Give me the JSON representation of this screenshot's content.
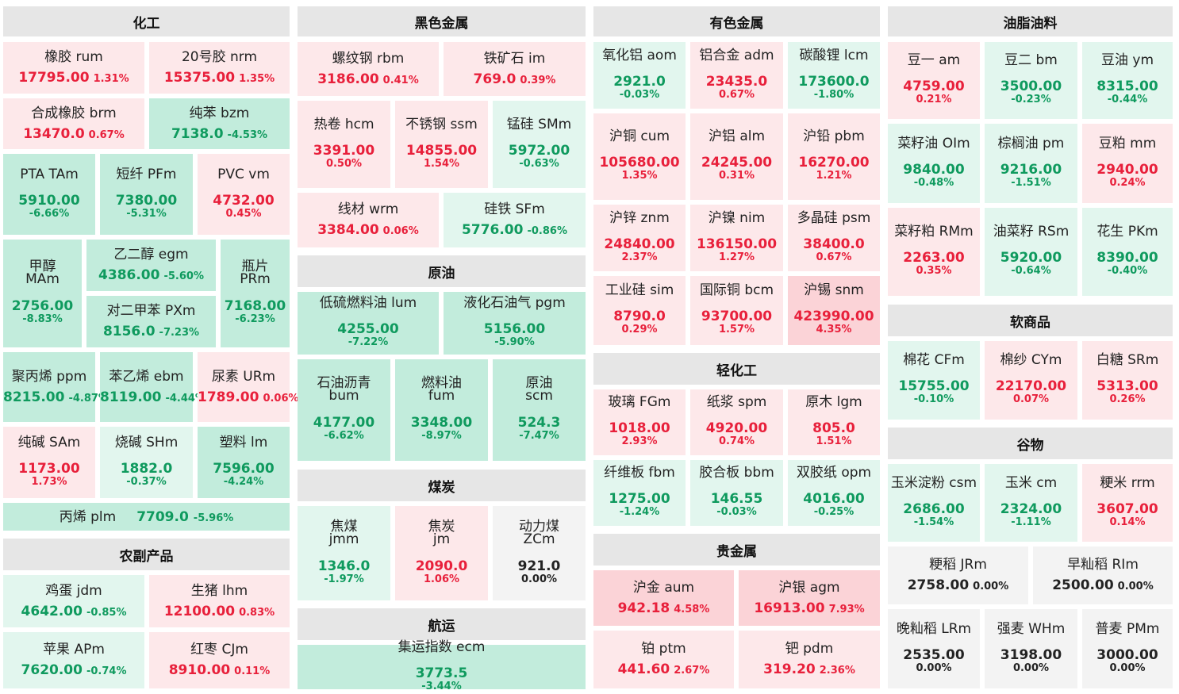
{
  "colors": {
    "up_text": "#e8203b",
    "down_text": "#0f9a5e",
    "flat_text": "#222222",
    "up_light_bg": "#fde8ea",
    "up_mid_bg": "#fbd3d7",
    "down_light_bg": "#e2f6ee",
    "down_mid_bg": "#c2ecdc",
    "flat_bg": "#f3f3f3",
    "header_bg": "#e6e6e6"
  },
  "sections": {
    "chemical": "化工",
    "ferrous": "黑色金属",
    "nonferrous": "有色金属",
    "oils": "油脂油料",
    "crude": "原油",
    "coal": "煤炭",
    "shipping": "航运",
    "light_industry": "轻化工",
    "precious": "贵金属",
    "softs": "软商品",
    "grains": "谷物",
    "agri": "农副产品"
  },
  "cells": {
    "rum": {
      "name": "橡胶  rum",
      "value": "17795.00",
      "pct": "1.31%",
      "dir": "up"
    },
    "nrm": {
      "name": "20号胶  nrm",
      "value": "15375.00",
      "pct": "1.35%",
      "dir": "up"
    },
    "brm": {
      "name": "合成橡胶  brm",
      "value": "13470.0",
      "pct": "0.67%",
      "dir": "up"
    },
    "bzm": {
      "name": "纯苯  bzm",
      "value": "7138.0",
      "pct": "-4.53%",
      "dir": "down"
    },
    "TAm": {
      "name": "PTA  TAm",
      "value": "5910.00",
      "pct": "-6.66%",
      "dir": "down"
    },
    "PFm": {
      "name": "短纤  PFm",
      "value": "7380.00",
      "pct": "-5.31%",
      "dir": "down"
    },
    "vm": {
      "name": "PVC  vm",
      "value": "4732.00",
      "pct": "0.45%",
      "dir": "up"
    },
    "MAm": {
      "name": "甲醇",
      "name2": "MAm",
      "value": "2756.00",
      "pct": "-8.83%",
      "dir": "down"
    },
    "egm": {
      "name": "乙二醇  egm",
      "value": "4386.00",
      "pct": "-5.60%",
      "dir": "down"
    },
    "PXm": {
      "name": "对二甲苯  PXm",
      "value": "8156.0",
      "pct": "-7.23%",
      "dir": "down"
    },
    "PRm": {
      "name": "瓶片",
      "name2": "PRm",
      "value": "7168.00",
      "pct": "-6.23%",
      "dir": "down"
    },
    "ppm": {
      "name": "聚丙烯  ppm",
      "value": "8215.00",
      "pct": "-4.87%",
      "dir": "down"
    },
    "ebm": {
      "name": "苯乙烯  ebm",
      "value": "8119.00",
      "pct": "-4.44%",
      "dir": "down"
    },
    "URm": {
      "name": "尿素  URm",
      "value": "1789.00",
      "pct": "0.06%",
      "dir": "up"
    },
    "SAm": {
      "name": "纯碱  SAm",
      "value": "1173.00",
      "pct": "1.73%",
      "dir": "up"
    },
    "SHm": {
      "name": "烧碱  SHm",
      "value": "1882.0",
      "pct": "-0.37%",
      "dir": "down"
    },
    "lm": {
      "name": "塑料  lm",
      "value": "7596.00",
      "pct": "-4.24%",
      "dir": "down"
    },
    "plm": {
      "name": "丙烯  plm",
      "value": "7709.0",
      "pct": "-5.96%",
      "dir": "down"
    },
    "jdm": {
      "name": "鸡蛋  jdm",
      "value": "4642.00",
      "pct": "-0.85%",
      "dir": "down"
    },
    "lhm": {
      "name": "生猪  lhm",
      "value": "12100.00",
      "pct": "0.83%",
      "dir": "up"
    },
    "APm": {
      "name": "苹果  APm",
      "value": "7620.00",
      "pct": "-0.74%",
      "dir": "down"
    },
    "CJm": {
      "name": "红枣  CJm",
      "value": "8910.00",
      "pct": "0.11%",
      "dir": "up"
    },
    "rbm": {
      "name": "螺纹钢  rbm",
      "value": "3186.00",
      "pct": "0.41%",
      "dir": "up"
    },
    "im": {
      "name": "铁矿石  im",
      "value": "769.0",
      "pct": "0.39%",
      "dir": "up"
    },
    "hcm": {
      "name": "热卷  hcm",
      "value": "3391.00",
      "pct": "0.50%",
      "dir": "up"
    },
    "ssm": {
      "name": "不锈钢  ssm",
      "value": "14855.00",
      "pct": "1.54%",
      "dir": "up"
    },
    "SMm": {
      "name": "锰硅  SMm",
      "value": "5972.00",
      "pct": "-0.63%",
      "dir": "down"
    },
    "wrm": {
      "name": "线材  wrm",
      "value": "3384.00",
      "pct": "0.06%",
      "dir": "up"
    },
    "SFm": {
      "name": "硅铁  SFm",
      "value": "5776.00",
      "pct": "-0.86%",
      "dir": "down"
    },
    "lum": {
      "name": "低硫燃料油  lum",
      "value": "4255.00",
      "pct": "-7.22%",
      "dir": "down"
    },
    "pgm": {
      "name": "液化石油气  pgm",
      "value": "5156.00",
      "pct": "-5.90%",
      "dir": "down"
    },
    "bum": {
      "name": "石油沥青",
      "name2": "bum",
      "value": "4177.00",
      "pct": "-6.62%",
      "dir": "down"
    },
    "fum": {
      "name": "燃料油",
      "name2": "fum",
      "value": "3348.00",
      "pct": "-8.97%",
      "dir": "down"
    },
    "scm": {
      "name": "原油",
      "name2": "scm",
      "value": "524.3",
      "pct": "-7.47%",
      "dir": "down"
    },
    "jmm": {
      "name": "焦煤",
      "name2": "jmm",
      "value": "1346.0",
      "pct": "-1.97%",
      "dir": "down"
    },
    "jm": {
      "name": "焦炭",
      "name2": "jm",
      "value": "2090.0",
      "pct": "1.06%",
      "dir": "up"
    },
    "ZCm": {
      "name": "动力煤",
      "name2": "ZCm",
      "value": "921.0",
      "pct": "0.00%",
      "dir": "flat"
    },
    "ecm": {
      "name": "集运指数  ecm",
      "value": "3773.5",
      "pct": "-3.44%",
      "dir": "down"
    },
    "aom": {
      "name": "氧化铝  aom",
      "value": "2921.0",
      "pct": "-0.03%",
      "dir": "down"
    },
    "adm": {
      "name": "铝合金  adm",
      "value": "23435.0",
      "pct": "0.67%",
      "dir": "up"
    },
    "lcm": {
      "name": "碳酸锂  lcm",
      "value": "173600.0",
      "pct": "-1.80%",
      "dir": "down"
    },
    "cum": {
      "name": "沪铜  cum",
      "value": "105680.00",
      "pct": "1.35%",
      "dir": "up"
    },
    "alm": {
      "name": "沪铝  alm",
      "value": "24245.00",
      "pct": "0.31%",
      "dir": "up"
    },
    "pbm": {
      "name": "沪铅  pbm",
      "value": "16270.00",
      "pct": "1.21%",
      "dir": "up"
    },
    "znm": {
      "name": "沪锌  znm",
      "value": "24840.00",
      "pct": "2.37%",
      "dir": "up"
    },
    "nim": {
      "name": "沪镍  nim",
      "value": "136150.00",
      "pct": "1.27%",
      "dir": "up"
    },
    "psm": {
      "name": "多晶硅  psm",
      "value": "38400.0",
      "pct": "0.67%",
      "dir": "up"
    },
    "sim": {
      "name": "工业硅  sim",
      "value": "8790.0",
      "pct": "0.29%",
      "dir": "up"
    },
    "bcm": {
      "name": "国际铜  bcm",
      "value": "93700.00",
      "pct": "1.57%",
      "dir": "up"
    },
    "snm": {
      "name": "沪锡  snm",
      "value": "423990.00",
      "pct": "4.35%",
      "dir": "up"
    },
    "FGm": {
      "name": "玻璃  FGm",
      "value": "1018.00",
      "pct": "2.93%",
      "dir": "up"
    },
    "spm": {
      "name": "纸浆  spm",
      "value": "4920.00",
      "pct": "0.74%",
      "dir": "up"
    },
    "lgm": {
      "name": "原木  lgm",
      "value": "805.0",
      "pct": "1.51%",
      "dir": "up"
    },
    "fbm": {
      "name": "纤维板  fbm",
      "value": "1275.00",
      "pct": "-1.24%",
      "dir": "down"
    },
    "bbm": {
      "name": "胶合板  bbm",
      "value": "146.55",
      "pct": "-0.03%",
      "dir": "down"
    },
    "opm": {
      "name": "双胶纸  opm",
      "value": "4016.00",
      "pct": "-0.25%",
      "dir": "down"
    },
    "aum": {
      "name": "沪金  aum",
      "value": "942.18",
      "pct": "4.58%",
      "dir": "up"
    },
    "agm": {
      "name": "沪银  agm",
      "value": "16913.00",
      "pct": "7.93%",
      "dir": "up"
    },
    "ptm": {
      "name": "铂  ptm",
      "value": "441.60",
      "pct": "2.67%",
      "dir": "up"
    },
    "pdm": {
      "name": "钯  pdm",
      "value": "319.20",
      "pct": "2.36%",
      "dir": "up"
    },
    "am": {
      "name": "豆一  am",
      "value": "4759.00",
      "pct": "0.21%",
      "dir": "up"
    },
    "bm": {
      "name": "豆二  bm",
      "value": "3500.00",
      "pct": "-0.23%",
      "dir": "down"
    },
    "ym": {
      "name": "豆油  ym",
      "value": "8315.00",
      "pct": "-0.44%",
      "dir": "down"
    },
    "OIm": {
      "name": "菜籽油  OIm",
      "value": "9840.00",
      "pct": "-0.48%",
      "dir": "down"
    },
    "pm": {
      "name": "棕榈油  pm",
      "value": "9216.00",
      "pct": "-1.51%",
      "dir": "down"
    },
    "mm": {
      "name": "豆粕  mm",
      "value": "2940.00",
      "pct": "0.24%",
      "dir": "up"
    },
    "RMm": {
      "name": "菜籽粕  RMm",
      "value": "2263.00",
      "pct": "0.35%",
      "dir": "up"
    },
    "RSm": {
      "name": "油菜籽  RSm",
      "value": "5920.00",
      "pct": "-0.64%",
      "dir": "down"
    },
    "PKm": {
      "name": "花生  PKm",
      "value": "8390.00",
      "pct": "-0.40%",
      "dir": "down"
    },
    "CFm": {
      "name": "棉花  CFm",
      "value": "15755.00",
      "pct": "-0.10%",
      "dir": "down"
    },
    "CYm": {
      "name": "棉纱  CYm",
      "value": "22170.00",
      "pct": "0.07%",
      "dir": "up"
    },
    "SRm": {
      "name": "白糖  SRm",
      "value": "5313.00",
      "pct": "0.26%",
      "dir": "up"
    },
    "csm": {
      "name": "玉米淀粉  csm",
      "value": "2686.00",
      "pct": "-1.54%",
      "dir": "down"
    },
    "cm": {
      "name": "玉米  cm",
      "value": "2324.00",
      "pct": "-1.11%",
      "dir": "down"
    },
    "rrm": {
      "name": "粳米  rrm",
      "value": "3607.00",
      "pct": "0.14%",
      "dir": "up"
    },
    "JRm": {
      "name": "粳稻  JRm",
      "value": "2758.00",
      "pct": "0.00%",
      "dir": "flat"
    },
    "RIm": {
      "name": "早籼稻  RIm",
      "value": "2500.00",
      "pct": "0.00%",
      "dir": "flat"
    },
    "LRm": {
      "name": "晚籼稻  LRm",
      "value": "2535.00",
      "pct": "0.00%",
      "dir": "flat"
    },
    "WHm": {
      "name": "强麦  WHm",
      "value": "3198.00",
      "pct": "0.00%",
      "dir": "flat"
    },
    "PMm": {
      "name": "普麦  PMm",
      "value": "3000.00",
      "pct": "0.00%",
      "dir": "flat"
    }
  }
}
